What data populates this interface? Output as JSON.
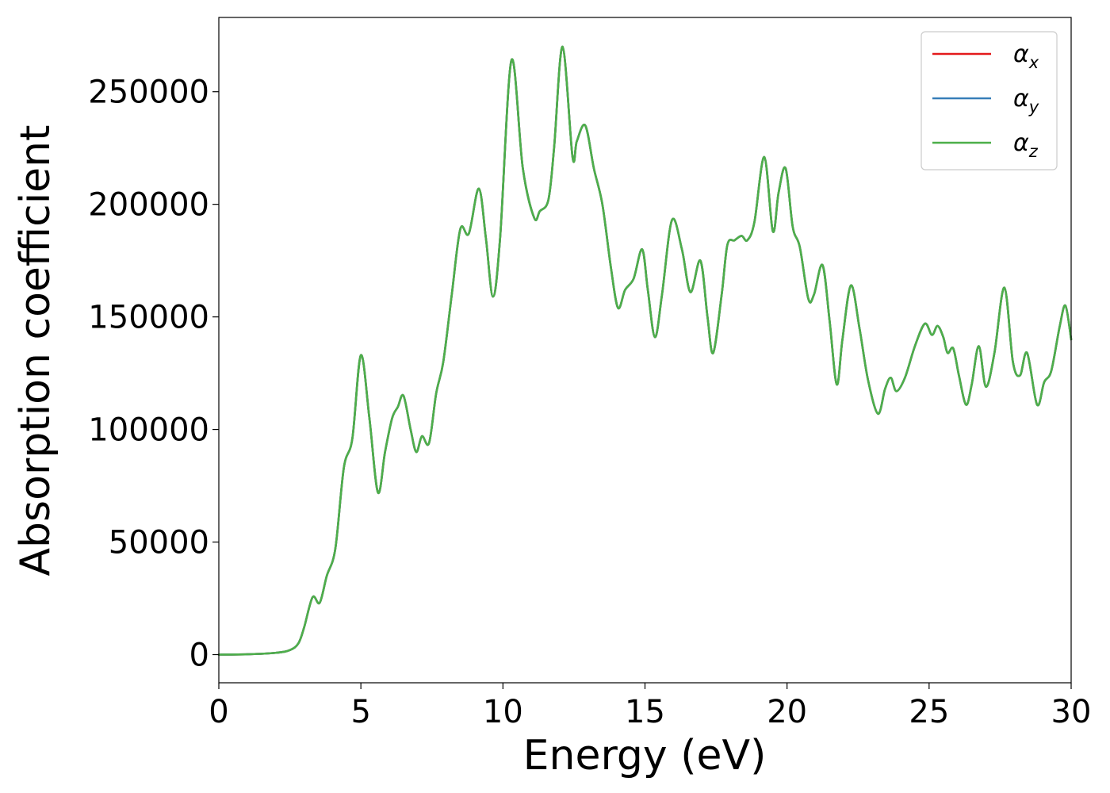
{
  "chart_data": {
    "type": "line",
    "title": "",
    "xlabel": "Energy (eV)",
    "ylabel": "Absorption coefficient",
    "xlim": [
      0,
      30
    ],
    "ylim": [
      -12500,
      283000
    ],
    "xticks": [
      0,
      5,
      10,
      15,
      20,
      25,
      30
    ],
    "xtick_labels": [
      "0",
      "5",
      "10",
      "15",
      "20",
      "25",
      "30"
    ],
    "yticks": [
      0,
      50000,
      100000,
      150000,
      200000,
      250000
    ],
    "ytick_labels": [
      "0",
      "50000",
      "100000",
      "150000",
      "200000",
      "250000"
    ],
    "grid": false,
    "legend_position": "top-right",
    "x": [
      0,
      1,
      2,
      2.5,
      2.8,
      3.0,
      3.3,
      3.55,
      3.8,
      4.1,
      4.4,
      4.7,
      5.0,
      5.3,
      5.6,
      5.85,
      6.1,
      6.3,
      6.5,
      6.75,
      6.95,
      7.15,
      7.4,
      7.65,
      7.9,
      8.2,
      8.5,
      8.8,
      9.15,
      9.4,
      9.65,
      9.9,
      10.3,
      10.7,
      11.1,
      11.3,
      11.6,
      11.8,
      12.1,
      12.45,
      12.6,
      12.9,
      13.2,
      13.5,
      13.8,
      14.05,
      14.3,
      14.6,
      14.9,
      15.1,
      15.35,
      15.6,
      15.95,
      16.3,
      16.6,
      16.95,
      17.2,
      17.4,
      17.7,
      17.9,
      18.15,
      18.4,
      18.6,
      18.85,
      19.2,
      19.5,
      19.7,
      19.95,
      20.2,
      20.45,
      20.75,
      20.95,
      21.25,
      21.5,
      21.75,
      21.95,
      22.25,
      22.55,
      22.85,
      23.2,
      23.45,
      23.65,
      23.85,
      24.15,
      24.5,
      24.85,
      25.1,
      25.3,
      25.5,
      25.65,
      25.85,
      26.05,
      26.3,
      26.5,
      26.75,
      27.0,
      27.3,
      27.65,
      27.95,
      28.2,
      28.45,
      28.8,
      29.05,
      29.3,
      29.6,
      29.8,
      30.0
    ],
    "series": [
      {
        "name": "x",
        "color": "#e41a1c",
        "values": [
          0,
          150,
          800,
          2000,
          5000,
          12000,
          25500,
          23000,
          35000,
          47000,
          83000,
          96000,
          133000,
          105000,
          72000,
          90000,
          105000,
          110000,
          115000,
          100000,
          90000,
          97000,
          94000,
          116000,
          130000,
          160000,
          189000,
          187000,
          207000,
          185000,
          159000,
          185000,
          264000,
          216000,
          194000,
          197000,
          202000,
          225000,
          270000,
          221000,
          228000,
          235000,
          216000,
          200000,
          172000,
          154000,
          162000,
          167000,
          180000,
          162000,
          141000,
          160000,
          193000,
          180000,
          161000,
          175000,
          150000,
          134000,
          160000,
          182000,
          184000,
          186000,
          184000,
          192000,
          221000,
          188000,
          205000,
          216000,
          190000,
          181000,
          158000,
          160000,
          173000,
          148000,
          120000,
          140000,
          164000,
          145000,
          122000,
          107000,
          118000,
          123000,
          117000,
          123000,
          137000,
          147000,
          142000,
          146000,
          141000,
          134000,
          136000,
          124000,
          111000,
          120000,
          137000,
          119000,
          134000,
          163000,
          130000,
          124000,
          134000,
          111000,
          121000,
          126000,
          146000,
          155000,
          140000
        ]
      },
      {
        "name": "y",
        "color": "#377eb8",
        "values": [
          0,
          150,
          800,
          2000,
          5000,
          12000,
          25500,
          23000,
          35000,
          47000,
          83000,
          96000,
          133000,
          105000,
          72000,
          90000,
          105000,
          110000,
          115000,
          100000,
          90000,
          97000,
          94000,
          116000,
          130000,
          160000,
          189000,
          187000,
          207000,
          185000,
          159000,
          185000,
          264000,
          216000,
          194000,
          197000,
          202000,
          225000,
          270000,
          221000,
          228000,
          235000,
          216000,
          200000,
          172000,
          154000,
          162000,
          167000,
          180000,
          162000,
          141000,
          160000,
          193000,
          180000,
          161000,
          175000,
          150000,
          134000,
          160000,
          182000,
          184000,
          186000,
          184000,
          192000,
          221000,
          188000,
          205000,
          216000,
          190000,
          181000,
          158000,
          160000,
          173000,
          148000,
          120000,
          140000,
          164000,
          145000,
          122000,
          107000,
          118000,
          123000,
          117000,
          123000,
          137000,
          147000,
          142000,
          146000,
          141000,
          134000,
          136000,
          124000,
          111000,
          120000,
          137000,
          119000,
          134000,
          163000,
          130000,
          124000,
          134000,
          111000,
          121000,
          126000,
          146000,
          155000,
          140000
        ]
      },
      {
        "name": "z",
        "color": "#4daf4a",
        "values": [
          0,
          150,
          800,
          2000,
          5000,
          12000,
          25500,
          23000,
          35000,
          47000,
          83000,
          96000,
          133000,
          105000,
          72000,
          90000,
          105000,
          110000,
          115000,
          100000,
          90000,
          97000,
          94000,
          116000,
          130000,
          160000,
          189000,
          187000,
          207000,
          185000,
          159000,
          185000,
          264000,
          216000,
          194000,
          197000,
          202000,
          225000,
          270000,
          221000,
          228000,
          235000,
          216000,
          200000,
          172000,
          154000,
          162000,
          167000,
          180000,
          162000,
          141000,
          160000,
          193000,
          180000,
          161000,
          175000,
          150000,
          134000,
          160000,
          182000,
          184000,
          186000,
          184000,
          192000,
          221000,
          188000,
          205000,
          216000,
          190000,
          181000,
          158000,
          160000,
          173000,
          148000,
          120000,
          140000,
          164000,
          145000,
          122000,
          107000,
          118000,
          123000,
          117000,
          123000,
          137000,
          147000,
          142000,
          146000,
          141000,
          134000,
          136000,
          124000,
          111000,
          120000,
          137000,
          119000,
          134000,
          163000,
          130000,
          124000,
          134000,
          111000,
          121000,
          126000,
          146000,
          155000,
          140000
        ]
      }
    ],
    "legend": [
      {
        "symbol": "α",
        "sub": "x",
        "color": "#e41a1c"
      },
      {
        "symbol": "α",
        "sub": "y",
        "color": "#377eb8"
      },
      {
        "symbol": "α",
        "sub": "z",
        "color": "#4daf4a"
      }
    ]
  }
}
